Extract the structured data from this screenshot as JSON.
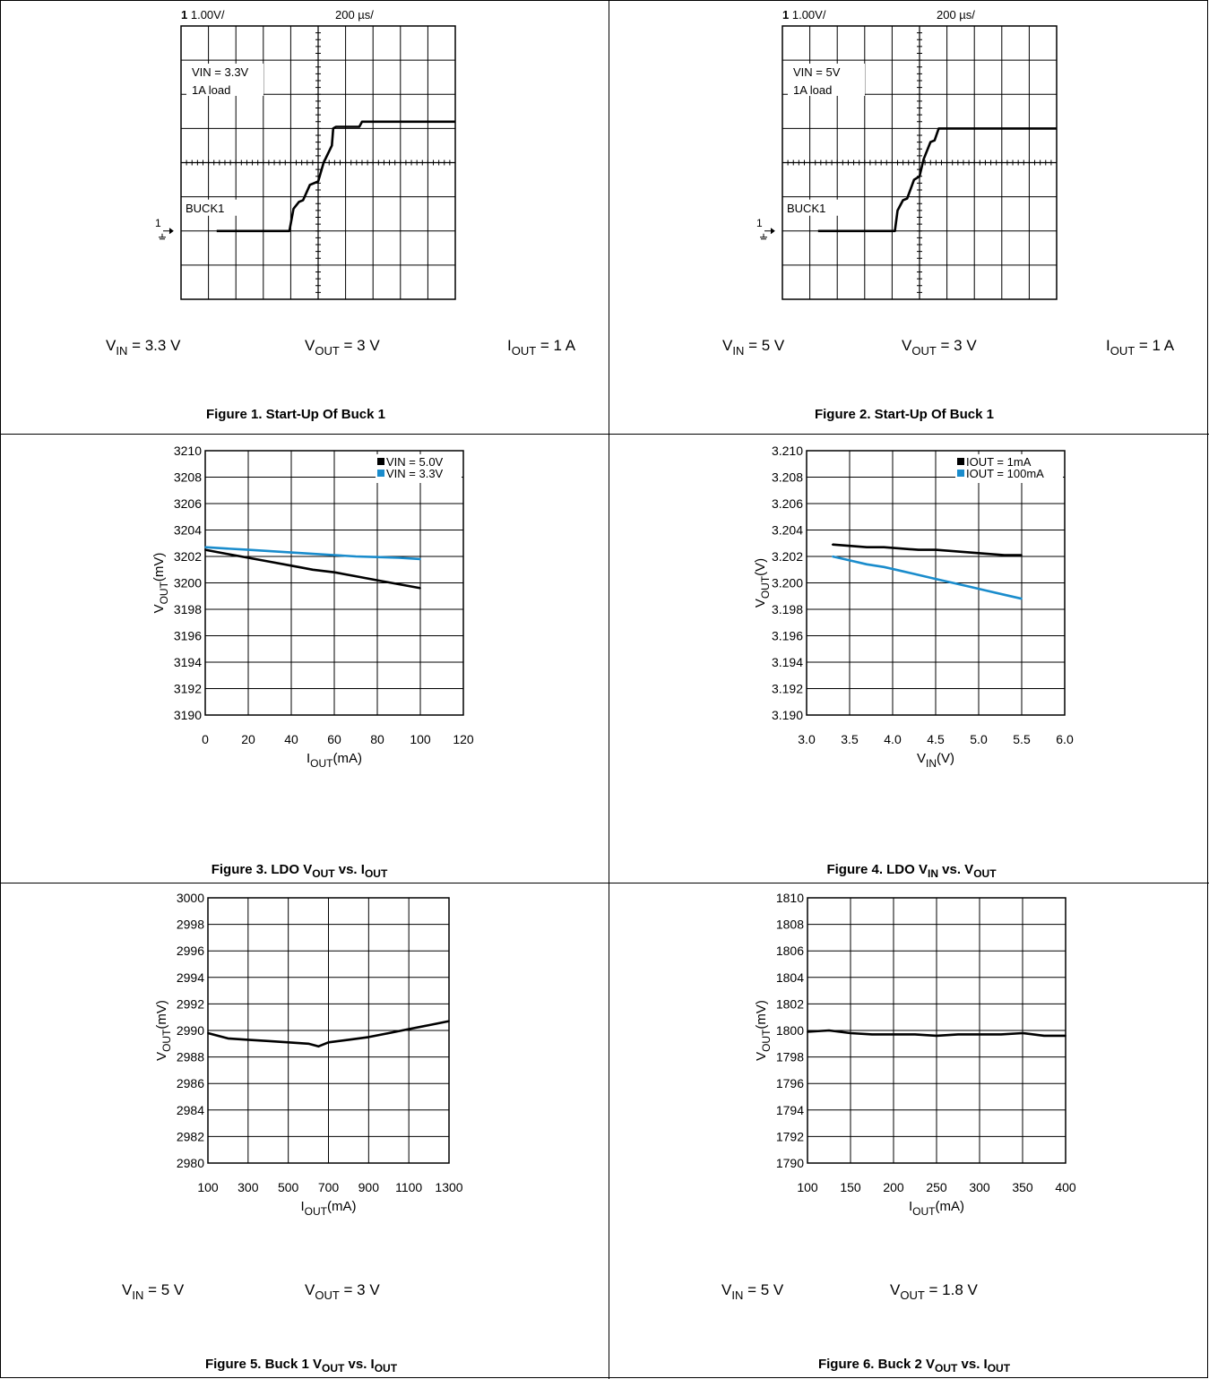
{
  "chart_data": [
    {
      "type": "line",
      "subtype": "oscilloscope",
      "channel": "1",
      "channel_scale": "1.00V/",
      "time_scale": "200 µs/",
      "annotations": [
        "VIN = 3.3V",
        "1A load"
      ],
      "trace_label": "BUCK1",
      "marker": "1",
      "divisions": {
        "x": 10,
        "y": 8
      },
      "x_div": [
        1.3,
        3.95,
        4.1,
        4.3,
        4.45,
        4.7,
        5.0,
        5.2,
        5.5,
        5.55,
        5.65,
        6.5,
        6.6,
        10
      ],
      "y_div": [
        0,
        0,
        0.65,
        0.85,
        0.9,
        1.35,
        1.45,
        2.0,
        2.5,
        3.0,
        3.05,
        3.05,
        3.2,
        3.2
      ],
      "conditions": [
        {
          "name": "V",
          "sub": "IN",
          "value": " = 3.3 V"
        },
        {
          "name": "V",
          "sub": "OUT",
          "value": " = 3 V"
        },
        {
          "name": "I",
          "sub": "OUT",
          "value": " = 1 A"
        }
      ],
      "caption": "Figure 1. Start-Up Of Buck 1"
    },
    {
      "type": "line",
      "subtype": "oscilloscope",
      "channel": "1",
      "channel_scale": "1.00V/",
      "time_scale": "200 µs/",
      "annotations": [
        "VIN = 5V",
        "1A load"
      ],
      "trace_label": "BUCK1",
      "marker": "1",
      "divisions": {
        "x": 10,
        "y": 8
      },
      "x_div": [
        1.3,
        4.1,
        4.2,
        4.4,
        4.55,
        4.8,
        5.0,
        5.15,
        5.4,
        5.55,
        5.7,
        10
      ],
      "y_div": [
        0,
        0,
        0.6,
        0.9,
        0.95,
        1.5,
        1.6,
        2.1,
        2.6,
        2.65,
        3.0,
        3.0
      ],
      "conditions": [
        {
          "name": "V",
          "sub": "IN",
          "value": " = 5 V"
        },
        {
          "name": "V",
          "sub": "OUT",
          "value": " = 3 V"
        },
        {
          "name": "I",
          "sub": "OUT",
          "value": " = 1 A"
        }
      ],
      "caption": "Figure 2. Start-Up Of Buck 1"
    },
    {
      "type": "line",
      "xlim": [
        0,
        120
      ],
      "ylim": [
        3190,
        3210
      ],
      "xticks": [
        "0",
        "20",
        "40",
        "60",
        "80",
        "100",
        "120"
      ],
      "yticks": [
        "3190",
        "3192",
        "3194",
        "3196",
        "3198",
        "3200",
        "3202",
        "3204",
        "3206",
        "3208",
        "3210"
      ],
      "xlabel": {
        "main": "I",
        "sub": "OUT",
        "unit": "(mA)"
      },
      "ylabel": {
        "main": "V",
        "sub": "OUT",
        "unit": "(mV)"
      },
      "grid": true,
      "legend_position": "top-right",
      "series": [
        {
          "name": "VIN = 5.0V",
          "color": "#000000",
          "x": [
            0,
            10,
            20,
            30,
            40,
            50,
            60,
            70,
            80,
            90,
            100
          ],
          "y": [
            3202.5,
            3202.2,
            3201.9,
            3201.6,
            3201.3,
            3201.0,
            3200.8,
            3200.5,
            3200.2,
            3199.9,
            3199.6
          ]
        },
        {
          "name": "VIN = 3.3V",
          "color": "#1a8ccc",
          "x": [
            0,
            10,
            20,
            30,
            40,
            50,
            60,
            70,
            80,
            90,
            100
          ],
          "y": [
            3202.7,
            3202.6,
            3202.5,
            3202.4,
            3202.3,
            3202.2,
            3202.1,
            3202.0,
            3201.95,
            3201.9,
            3201.8
          ]
        }
      ],
      "caption": {
        "pre": "Figure 3. LDO V",
        "sub1": "OUT",
        "mid": " vs. I",
        "sub2": "OUT"
      }
    },
    {
      "type": "line",
      "xlim": [
        3.0,
        6.0
      ],
      "ylim": [
        3.19,
        3.21
      ],
      "xticks": [
        "3.0",
        "3.5",
        "4.0",
        "4.5",
        "5.0",
        "5.5",
        "6.0"
      ],
      "yticks": [
        "3.190",
        "3.192",
        "3.194",
        "3.196",
        "3.198",
        "3.200",
        "3.202",
        "3.204",
        "3.206",
        "3.208",
        "3.210"
      ],
      "xlabel": {
        "main": "V",
        "sub": "IN",
        "unit": "(V)"
      },
      "ylabel": {
        "main": "V",
        "sub": "OUT",
        "unit": "(V)"
      },
      "grid": true,
      "legend_position": "top-right",
      "series": [
        {
          "name": "IOUT = 1mA",
          "color": "#000000",
          "x": [
            3.3,
            3.5,
            3.7,
            3.9,
            4.1,
            4.3,
            4.5,
            4.7,
            4.9,
            5.1,
            5.3,
            5.5
          ],
          "y": [
            3.2029,
            3.2028,
            3.2027,
            3.2027,
            3.2026,
            3.2025,
            3.2025,
            3.2024,
            3.2023,
            3.2022,
            3.2021,
            3.2021
          ]
        },
        {
          "name": "IOUT = 100mA",
          "color": "#1a8ccc",
          "x": [
            3.3,
            3.5,
            3.7,
            3.9,
            4.1,
            4.3,
            4.5,
            4.7,
            4.9,
            5.1,
            5.3,
            5.5
          ],
          "y": [
            3.202,
            3.2017,
            3.2014,
            3.2012,
            3.2009,
            3.2006,
            3.2003,
            3.2,
            3.1997,
            3.1994,
            3.1991,
            3.1988
          ]
        }
      ],
      "caption": {
        "pre": "Figure 4. LDO V",
        "sub1": "IN",
        "mid": " vs. V",
        "sub2": "OUT"
      }
    },
    {
      "type": "line",
      "xlim": [
        100,
        1300
      ],
      "ylim": [
        2980,
        3000
      ],
      "xticks": [
        "100",
        "300",
        "500",
        "700",
        "900",
        "1100",
        "1300"
      ],
      "yticks": [
        "2980",
        "2982",
        "2984",
        "2986",
        "2988",
        "2990",
        "2992",
        "2994",
        "2996",
        "2998",
        "3000"
      ],
      "xlabel": {
        "main": "I",
        "sub": "OUT",
        "unit": "(mA)"
      },
      "ylabel": {
        "main": "V",
        "sub": "OUT",
        "unit": "(mV)"
      },
      "grid": true,
      "series": [
        {
          "color": "#000000",
          "x": [
            100,
            200,
            300,
            400,
            500,
            600,
            650,
            700,
            800,
            900,
            1000,
            1100,
            1200,
            1300
          ],
          "y": [
            2989.8,
            2989.4,
            2989.3,
            2989.2,
            2989.1,
            2989.0,
            2988.8,
            2989.1,
            2989.3,
            2989.5,
            2989.8,
            2990.1,
            2990.4,
            2990.7
          ]
        }
      ],
      "conditions": [
        {
          "name": "V",
          "sub": "IN",
          "value": " = 5 V"
        },
        {
          "name": "V",
          "sub": "OUT",
          "value": " = 3 V"
        }
      ],
      "caption": {
        "pre": "Figure 5. Buck 1 V",
        "sub1": "OUT",
        "mid": " vs. I",
        "sub2": "OUT"
      }
    },
    {
      "type": "line",
      "xlim": [
        100,
        400
      ],
      "ylim": [
        1790,
        1810
      ],
      "xticks": [
        "100",
        "150",
        "200",
        "250",
        "300",
        "350",
        "400"
      ],
      "yticks": [
        "1790",
        "1792",
        "1794",
        "1796",
        "1798",
        "1800",
        "1802",
        "1804",
        "1806",
        "1808",
        "1810"
      ],
      "xlabel": {
        "main": "I",
        "sub": "OUT",
        "unit": "(mA)"
      },
      "ylabel": {
        "main": "V",
        "sub": "OUT",
        "unit": "(mV)"
      },
      "grid": true,
      "series": [
        {
          "color": "#000000",
          "x": [
            100,
            125,
            150,
            175,
            200,
            225,
            250,
            275,
            300,
            325,
            350,
            375,
            400
          ],
          "y": [
            1799.9,
            1800.0,
            1799.8,
            1799.7,
            1799.7,
            1799.7,
            1799.6,
            1799.7,
            1799.7,
            1799.7,
            1799.8,
            1799.6,
            1799.6
          ]
        }
      ],
      "conditions": [
        {
          "name": "V",
          "sub": "IN",
          "value": " = 5 V"
        },
        {
          "name": "V",
          "sub": "OUT",
          "value": " = 1.8 V"
        }
      ],
      "caption": {
        "pre": "Figure 6. Buck 2 V",
        "sub1": "OUT",
        "mid": " vs. I",
        "sub2": "OUT"
      }
    }
  ]
}
